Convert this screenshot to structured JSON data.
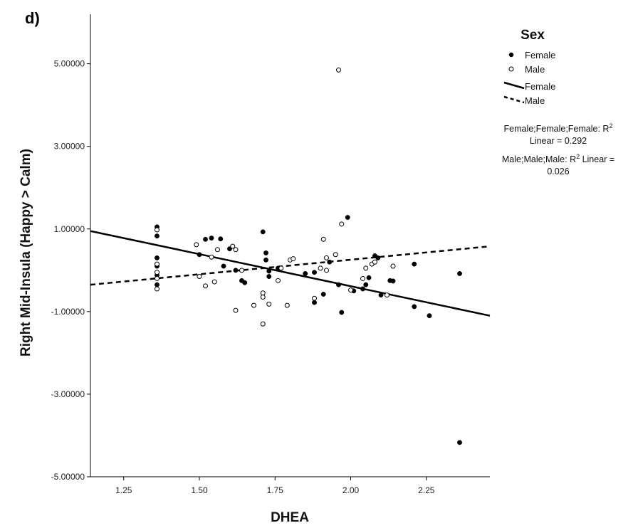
{
  "panel_label": "d)",
  "legend": {
    "title": "Sex",
    "items": [
      {
        "label": "Female",
        "kind": "marker",
        "series": "Female"
      },
      {
        "label": "Male",
        "kind": "marker",
        "series": "Male"
      },
      {
        "label": "Female",
        "kind": "line",
        "series": "Female"
      },
      {
        "label": "Male",
        "kind": "line",
        "series": "Male"
      }
    ],
    "fit_text": [
      {
        "line1": "Female;Female;Female: R",
        "sup": "2",
        "line2": "Linear = 0.292"
      },
      {
        "line1": "Male;Male;Male: R",
        "sup": "2",
        "line1b": " Linear =",
        "line2": "0.026"
      }
    ]
  },
  "chart_data": {
    "type": "scatter",
    "xlabel": "DHEA",
    "ylabel": "Right Mid-Insula (Happy > Calm)",
    "xlim": [
      1.14,
      2.46
    ],
    "ylim": [
      -5.0,
      6.2
    ],
    "x_ticks": [
      1.25,
      1.5,
      1.75,
      2.0,
      2.25
    ],
    "x_tick_labels": [
      "1.25",
      "1.50",
      "1.75",
      "2.00",
      "2.25"
    ],
    "y_ticks": [
      -5,
      -3,
      -1,
      1,
      3,
      5
    ],
    "y_tick_labels": [
      "-5.00000",
      "-3.00000",
      "-1.00000",
      "1.00000",
      "3.00000",
      "5.00000"
    ],
    "legend_position": "top-right",
    "grid": false,
    "series": [
      {
        "name": "Female",
        "marker": "filled-circle",
        "color": "#000000",
        "fit_line": {
          "style": "solid",
          "x": [
            1.14,
            2.46
          ],
          "y": [
            0.95,
            -1.1
          ],
          "r2": 0.292
        },
        "points": [
          [
            1.36,
            1.05
          ],
          [
            1.36,
            0.83
          ],
          [
            1.36,
            0.3
          ],
          [
            1.36,
            0.1
          ],
          [
            1.36,
            -0.12
          ],
          [
            1.36,
            -0.35
          ],
          [
            1.5,
            0.38
          ],
          [
            1.52,
            0.75
          ],
          [
            1.54,
            0.78
          ],
          [
            1.57,
            0.76
          ],
          [
            1.58,
            0.1
          ],
          [
            1.6,
            0.52
          ],
          [
            1.62,
            0.0
          ],
          [
            1.64,
            -0.25
          ],
          [
            1.65,
            -0.3
          ],
          [
            1.71,
            0.93
          ],
          [
            1.72,
            0.42
          ],
          [
            1.72,
            0.25
          ],
          [
            1.73,
            -0.02
          ],
          [
            1.73,
            -0.15
          ],
          [
            1.76,
            0.05
          ],
          [
            1.85,
            -0.08
          ],
          [
            1.88,
            -0.05
          ],
          [
            1.88,
            -0.78
          ],
          [
            1.91,
            -0.58
          ],
          [
            1.93,
            0.2
          ],
          [
            1.96,
            -0.35
          ],
          [
            1.97,
            -1.02
          ],
          [
            1.99,
            1.28
          ],
          [
            2.01,
            -0.5
          ],
          [
            2.04,
            -0.45
          ],
          [
            2.05,
            -0.35
          ],
          [
            2.06,
            -0.18
          ],
          [
            2.08,
            0.35
          ],
          [
            2.09,
            0.3
          ],
          [
            2.1,
            -0.6
          ],
          [
            2.13,
            -0.25
          ],
          [
            2.14,
            -0.26
          ],
          [
            2.21,
            0.15
          ],
          [
            2.21,
            -0.88
          ],
          [
            2.26,
            -1.1
          ],
          [
            2.36,
            -0.08
          ],
          [
            2.36,
            -4.17
          ]
        ]
      },
      {
        "name": "Male",
        "marker": "open-circle",
        "color": "#000000",
        "fit_line": {
          "style": "dashed",
          "x": [
            1.14,
            2.46
          ],
          "y": [
            -0.35,
            0.58
          ],
          "r2": 0.026
        },
        "points": [
          [
            1.36,
            0.98
          ],
          [
            1.36,
            0.15
          ],
          [
            1.36,
            -0.05
          ],
          [
            1.36,
            -0.2
          ],
          [
            1.36,
            -0.45
          ],
          [
            1.49,
            0.62
          ],
          [
            1.5,
            -0.15
          ],
          [
            1.52,
            -0.38
          ],
          [
            1.54,
            0.32
          ],
          [
            1.55,
            -0.28
          ],
          [
            1.56,
            0.5
          ],
          [
            1.61,
            0.58
          ],
          [
            1.62,
            0.5
          ],
          [
            1.62,
            -0.97
          ],
          [
            1.64,
            0.0
          ],
          [
            1.68,
            -0.85
          ],
          [
            1.71,
            -0.55
          ],
          [
            1.71,
            -0.65
          ],
          [
            1.71,
            -1.3
          ],
          [
            1.73,
            -0.82
          ],
          [
            1.76,
            -0.25
          ],
          [
            1.77,
            0.05
          ],
          [
            1.79,
            -0.85
          ],
          [
            1.8,
            0.25
          ],
          [
            1.81,
            0.28
          ],
          [
            1.88,
            -0.68
          ],
          [
            1.9,
            0.05
          ],
          [
            1.91,
            0.75
          ],
          [
            1.92,
            0.0
          ],
          [
            1.92,
            0.3
          ],
          [
            1.95,
            0.38
          ],
          [
            1.96,
            4.85
          ],
          [
            1.97,
            1.12
          ],
          [
            2.0,
            -0.48
          ],
          [
            2.04,
            -0.2
          ],
          [
            2.05,
            0.05
          ],
          [
            2.07,
            0.15
          ],
          [
            2.08,
            0.2
          ],
          [
            2.12,
            -0.6
          ],
          [
            2.14,
            0.1
          ]
        ]
      }
    ]
  }
}
